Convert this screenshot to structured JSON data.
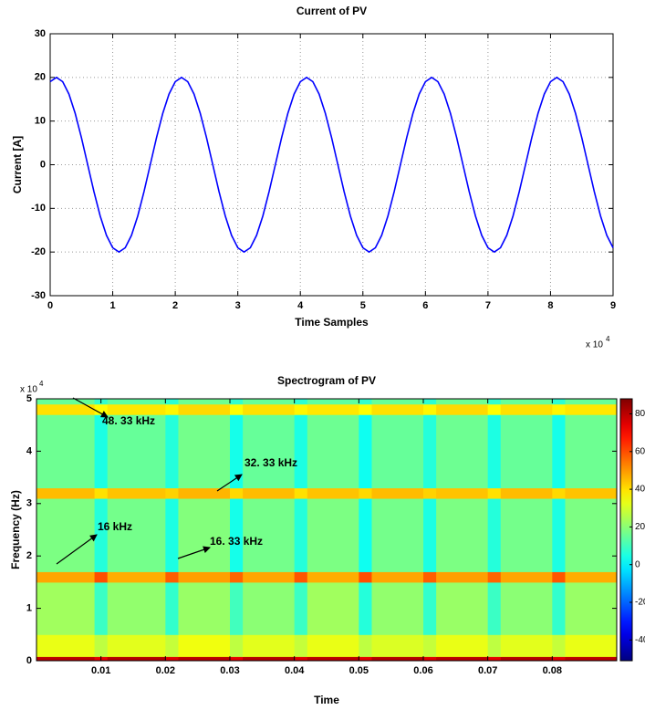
{
  "chart_data": [
    {
      "type": "line",
      "title": "Current of PV",
      "x_label": "Time Samples",
      "y_label": "Current [A]",
      "x_multiplier": "x 10",
      "x_multiplier_exponent": "4",
      "x": [
        0,
        0.1,
        0.2,
        0.3,
        0.4,
        0.5,
        0.6,
        0.7,
        0.8,
        0.9,
        1,
        1.1,
        1.2,
        1.3,
        1.4,
        1.5,
        1.6,
        1.7,
        1.8,
        1.9,
        2,
        2.1,
        2.2,
        2.3,
        2.4,
        2.5,
        2.6,
        2.7,
        2.8,
        2.9,
        3,
        3.1,
        3.2,
        3.3,
        3.4,
        3.5,
        3.6,
        3.7,
        3.8,
        3.9,
        4,
        4.1,
        4.2,
        4.3,
        4.4,
        4.5,
        4.6,
        4.7,
        4.8,
        4.9,
        5,
        5.1,
        5.2,
        5.3,
        5.4,
        5.5,
        5.6,
        5.7,
        5.8,
        5.9,
        6,
        6.1,
        6.2,
        6.3,
        6.4,
        6.5,
        6.6,
        6.7,
        6.8,
        6.9,
        7,
        7.1,
        7.2,
        7.3,
        7.4,
        7.5,
        7.6,
        7.7,
        7.8,
        7.9,
        8,
        8.1,
        8.2,
        8.3,
        8.4,
        8.5,
        8.6,
        8.7,
        8.8,
        8.9,
        9
      ],
      "values": [
        19.02,
        20,
        19.02,
        16.18,
        11.76,
        6.18,
        0,
        -6.18,
        -11.76,
        -16.18,
        -19.02,
        -20,
        -19.02,
        -16.18,
        -11.76,
        -6.18,
        0,
        6.18,
        11.76,
        16.18,
        19.02,
        20,
        19.02,
        16.18,
        11.76,
        6.18,
        0,
        -6.18,
        -11.76,
        -16.18,
        -19.02,
        -20,
        -19.02,
        -16.18,
        -11.76,
        -6.18,
        0,
        6.18,
        11.76,
        16.18,
        19.02,
        20,
        19.02,
        16.18,
        11.76,
        6.18,
        0,
        -6.18,
        -11.76,
        -16.18,
        -19.02,
        -20,
        -19.02,
        -16.18,
        -11.76,
        -6.18,
        0,
        6.18,
        11.76,
        16.18,
        19.02,
        20,
        19.02,
        16.18,
        11.76,
        6.18,
        0,
        -6.18,
        -11.76,
        -16.18,
        -19.02,
        -20,
        -19.02,
        -16.18,
        -11.76,
        -6.18,
        0,
        6.18,
        11.76,
        16.18,
        19.02,
        20,
        19.02,
        16.18,
        11.76,
        6.18,
        0,
        -6.18,
        -11.76,
        -16.18,
        -19.02
      ],
      "color": "#0000ff",
      "xlim": [
        0,
        9
      ],
      "xticks": [
        0,
        1,
        2,
        3,
        4,
        5,
        6,
        7,
        8,
        9
      ],
      "ylim": [
        -30,
        30
      ],
      "yticks": [
        -30,
        -20,
        -10,
        0,
        10,
        20,
        30
      ],
      "grid": true
    },
    {
      "type": "heatmap",
      "title": "Spectrogram of PV",
      "x_label": "Time",
      "y_label": "Frequency (Hz)",
      "y_multiplier": "x 10",
      "y_multiplier_exponent": "4",
      "x_edges": [
        0,
        0.009,
        0.011,
        0.02,
        0.022,
        0.03,
        0.032,
        0.04,
        0.042,
        0.05,
        0.052,
        0.06,
        0.062,
        0.07,
        0.072,
        0.08,
        0.082,
        0.09
      ],
      "y_edges": [
        0,
        0.08,
        0.5,
        1.5,
        1.7,
        3.1,
        3.3,
        4.7,
        4.9,
        5
      ],
      "z": [
        [
          80,
          74,
          81,
          75,
          80,
          74,
          81,
          75,
          80,
          74,
          81,
          75,
          80,
          74,
          81,
          75,
          80
        ],
        [
          33,
          27,
          32,
          28,
          34,
          27,
          32,
          28,
          33,
          27,
          31,
          28,
          33,
          27,
          32,
          28,
          33
        ],
        [
          23,
          9,
          21,
          8,
          22,
          10,
          20,
          9,
          23,
          6,
          21,
          8,
          22,
          9,
          20,
          8,
          22
        ],
        [
          48,
          60,
          47,
          58,
          49,
          57,
          48,
          59,
          47,
          60,
          48,
          58,
          49,
          57,
          48,
          59,
          47
        ],
        [
          18,
          6,
          17,
          5,
          19,
          4,
          17,
          6,
          18,
          3,
          17,
          5,
          18,
          6,
          17,
          5,
          18
        ],
        [
          45,
          40,
          44,
          42,
          46,
          41,
          45,
          40,
          44,
          41,
          45,
          42,
          44,
          40,
          45,
          41,
          44
        ],
        [
          16,
          5,
          15,
          6,
          17,
          4,
          15,
          5,
          16,
          3,
          15,
          6,
          16,
          5,
          15,
          4,
          16
        ],
        [
          40,
          36,
          39,
          37,
          41,
          36,
          40,
          37,
          39,
          36,
          40,
          37,
          41,
          36,
          40,
          37,
          39
        ],
        [
          15,
          8,
          14,
          7,
          16,
          8,
          15,
          7,
          14,
          8,
          15,
          7,
          16,
          8,
          15,
          7,
          15
        ]
      ],
      "xlim": [
        0,
        0.09
      ],
      "xticks": [
        0.01,
        0.02,
        0.03,
        0.04,
        0.05,
        0.06,
        0.07,
        0.08
      ],
      "ylim": [
        0,
        5
      ],
      "yticks": [
        0,
        1,
        2,
        3,
        4,
        5
      ],
      "colormap": "jet",
      "colorbar": {
        "lim": [
          -51,
          88
        ],
        "ticks": [
          -40,
          -20,
          0,
          20,
          40,
          60,
          80
        ]
      },
      "annotations": [
        "48. 33 kHz",
        "32. 33 kHz",
        "16 kHz",
        "16. 33 kHz"
      ]
    }
  ]
}
